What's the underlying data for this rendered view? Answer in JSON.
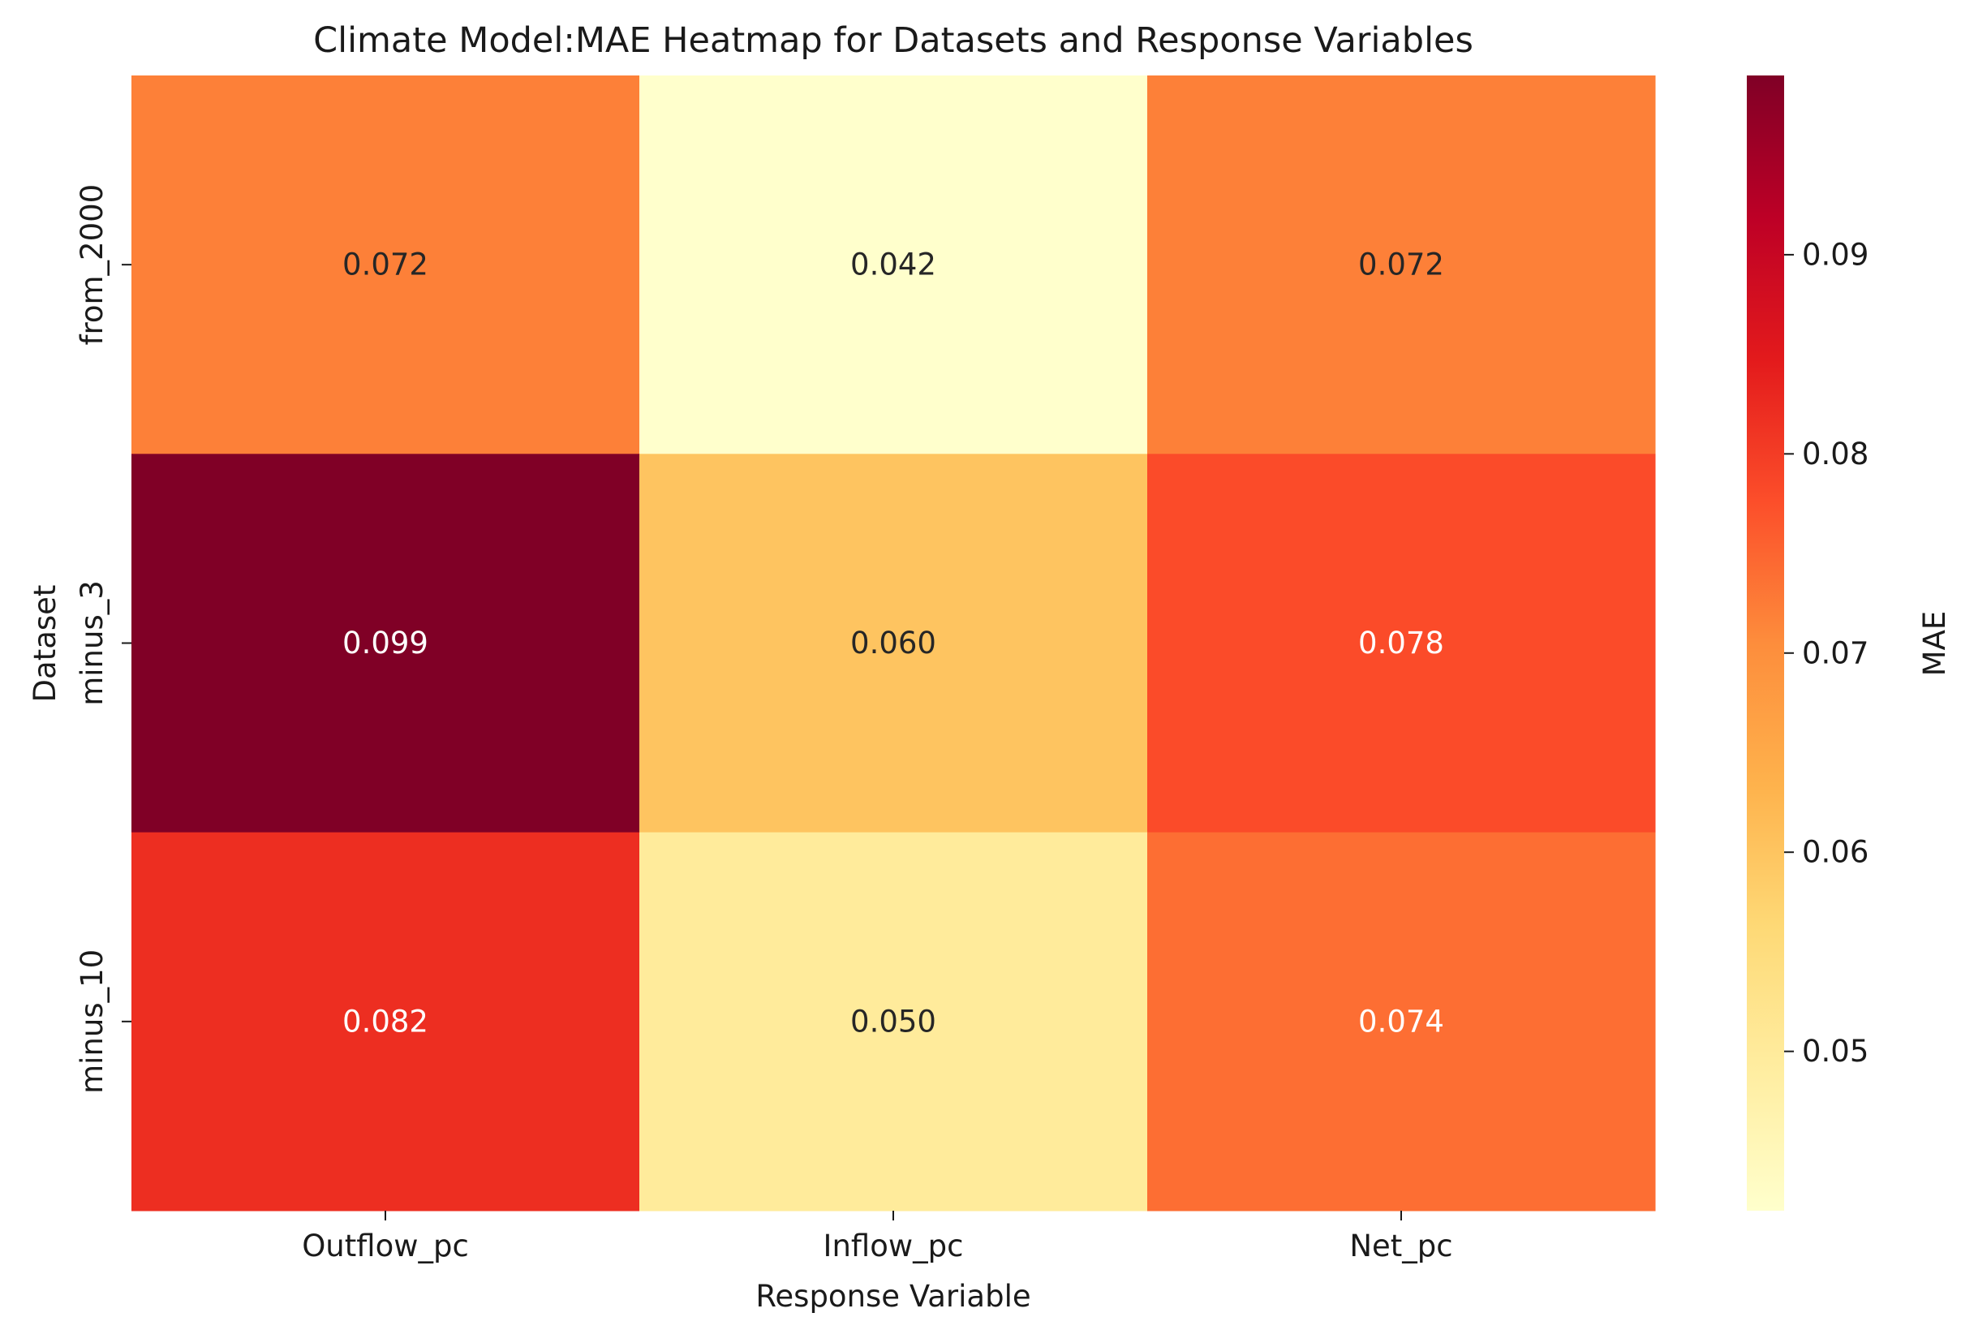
{
  "chart_data": {
    "type": "heatmap",
    "title": "Climate Model:MAE Heatmap for Datasets and Response Variables",
    "xlabel": "Response Variable",
    "ylabel": "Dataset",
    "x_categories": [
      "Outflow_pc",
      "Inflow_pc",
      "Net_pc"
    ],
    "y_categories": [
      "from_2000",
      "minus_3",
      "minus_10"
    ],
    "values": [
      [
        0.072,
        0.042,
        0.072
      ],
      [
        0.099,
        0.06,
        0.078
      ],
      [
        0.082,
        0.05,
        0.074
      ]
    ],
    "value_labels": [
      [
        "0.072",
        "0.042",
        "0.072"
      ],
      [
        "0.099",
        "0.060",
        "0.078"
      ],
      [
        "0.082",
        "0.050",
        "0.074"
      ]
    ],
    "colorbar": {
      "label": "MAE",
      "range": [
        0.042,
        0.099
      ],
      "ticks": [
        0.05,
        0.06,
        0.07,
        0.08,
        0.09
      ],
      "tick_labels": [
        "0.05",
        "0.06",
        "0.07",
        "0.08",
        "0.09"
      ]
    },
    "colormap": "YlOrRd",
    "colormap_stops": [
      "#ffffcc",
      "#ffeda0",
      "#fed976",
      "#feb24c",
      "#fd8d3c",
      "#fc4e2a",
      "#e31a1c",
      "#bd0026",
      "#800026"
    ]
  }
}
